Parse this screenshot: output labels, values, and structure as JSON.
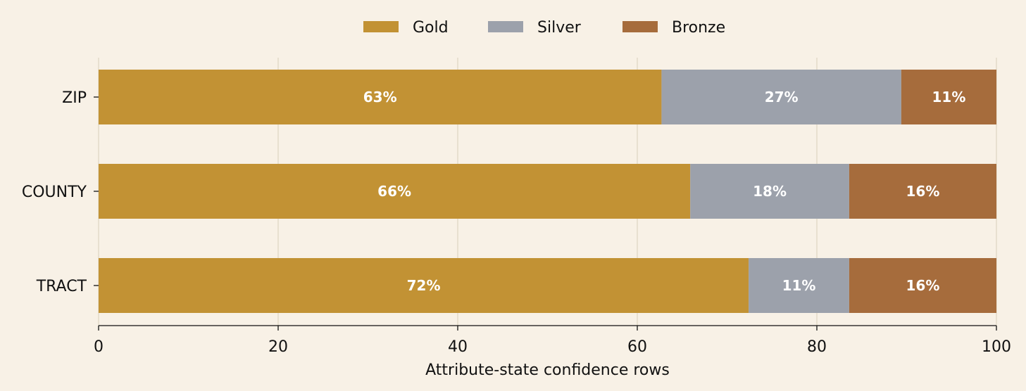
{
  "chart_data": {
    "type": "bar",
    "orientation": "horizontal",
    "stacked": true,
    "categories": [
      "ZIP",
      "COUNTY",
      "TRACT"
    ],
    "series": [
      {
        "name": "Gold",
        "color": "#c29234",
        "values": [
          62.7,
          65.9,
          72.4
        ],
        "labels": [
          "63%",
          "66%",
          "72%"
        ]
      },
      {
        "name": "Silver",
        "color": "#9ca1ab",
        "values": [
          26.7,
          17.7,
          11.2
        ],
        "labels": [
          "27%",
          "18%",
          "11%"
        ]
      },
      {
        "name": "Bronze",
        "color": "#a66c3c",
        "values": [
          10.6,
          16.4,
          16.4
        ],
        "labels": [
          "11%",
          "16%",
          "16%"
        ]
      }
    ],
    "xlabel": "Attribute-state confidence rows",
    "xlim": [
      0,
      100
    ],
    "xticks": [
      0,
      20,
      40,
      60,
      80,
      100
    ],
    "grid": "vertical",
    "legend": "top-center"
  }
}
